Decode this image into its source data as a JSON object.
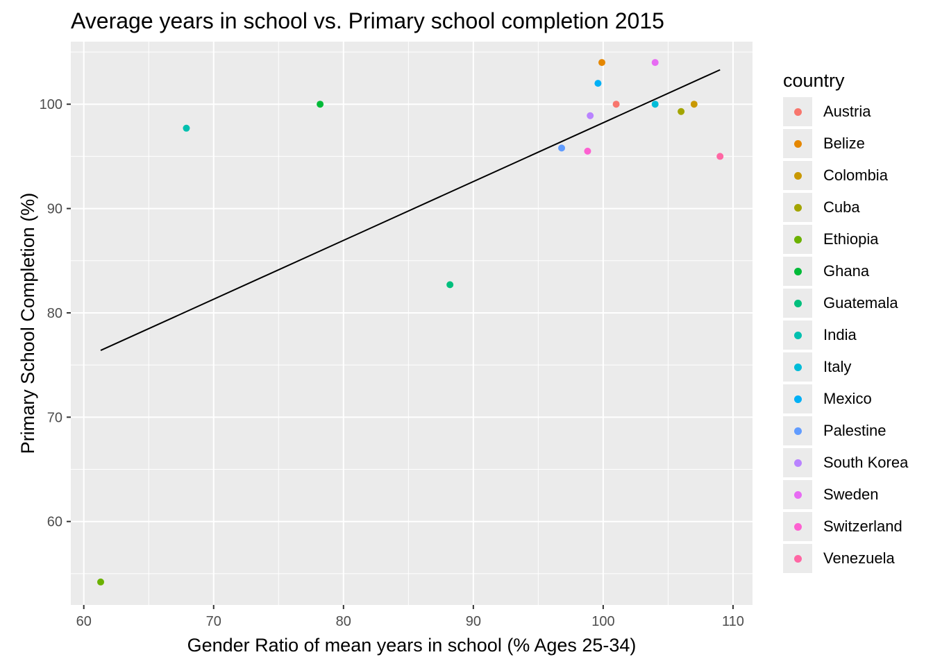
{
  "chart_data": {
    "type": "scatter",
    "title": "Average years in school vs. Primary school completion 2015",
    "xlabel": "Gender Ratio of mean years in school (% Ages 25-34)",
    "ylabel": "Primary School Completion (%)",
    "xlim": [
      59,
      111.5
    ],
    "ylim": [
      52,
      106
    ],
    "x_ticks": [
      60,
      70,
      80,
      90,
      100,
      110
    ],
    "x_tick_labels": [
      "60",
      "70",
      "80",
      "90",
      "100",
      "110"
    ],
    "y_ticks": [
      60,
      70,
      80,
      90,
      100
    ],
    "y_tick_labels": [
      "60",
      "70",
      "80",
      "90",
      "100"
    ],
    "grid": true,
    "legend": {
      "title": "country",
      "position": "right"
    },
    "series": [
      {
        "name": "Austria",
        "color": "#F8766D",
        "x": 101.0,
        "y": 100.0
      },
      {
        "name": "Belize",
        "color": "#E58700",
        "x": 99.9,
        "y": 104.0
      },
      {
        "name": "Colombia",
        "color": "#C99800",
        "x": 107.0,
        "y": 100.0
      },
      {
        "name": "Cuba",
        "color": "#A3A500",
        "x": 106.0,
        "y": 99.3
      },
      {
        "name": "Ethiopia",
        "color": "#6BB100",
        "x": 61.3,
        "y": 54.2
      },
      {
        "name": "Ghana",
        "color": "#00BA38",
        "x": 78.2,
        "y": 100.0
      },
      {
        "name": "Guatemala",
        "color": "#00BF7D",
        "x": 88.2,
        "y": 82.7
      },
      {
        "name": "India",
        "color": "#00C0AF",
        "x": 67.9,
        "y": 97.7
      },
      {
        "name": "Italy",
        "color": "#00BCD8",
        "x": 104.0,
        "y": 100.0
      },
      {
        "name": "Mexico",
        "color": "#00B0F6",
        "x": 99.6,
        "y": 102.0
      },
      {
        "name": "Palestine",
        "color": "#619CFF",
        "x": 96.8,
        "y": 95.8
      },
      {
        "name": "South Korea",
        "color": "#B983FF",
        "x": 99.0,
        "y": 98.9
      },
      {
        "name": "Sweden",
        "color": "#E76BF3",
        "x": 104.0,
        "y": 104.0
      },
      {
        "name": "Switzerland",
        "color": "#FD61D1",
        "x": 98.8,
        "y": 95.5
      },
      {
        "name": "Venezuela",
        "color": "#FF67A4",
        "x": 109.0,
        "y": 95.0
      }
    ],
    "trend_line": {
      "color": "#000000",
      "x": [
        61.3,
        109.0
      ],
      "y": [
        76.4,
        103.3
      ]
    }
  }
}
